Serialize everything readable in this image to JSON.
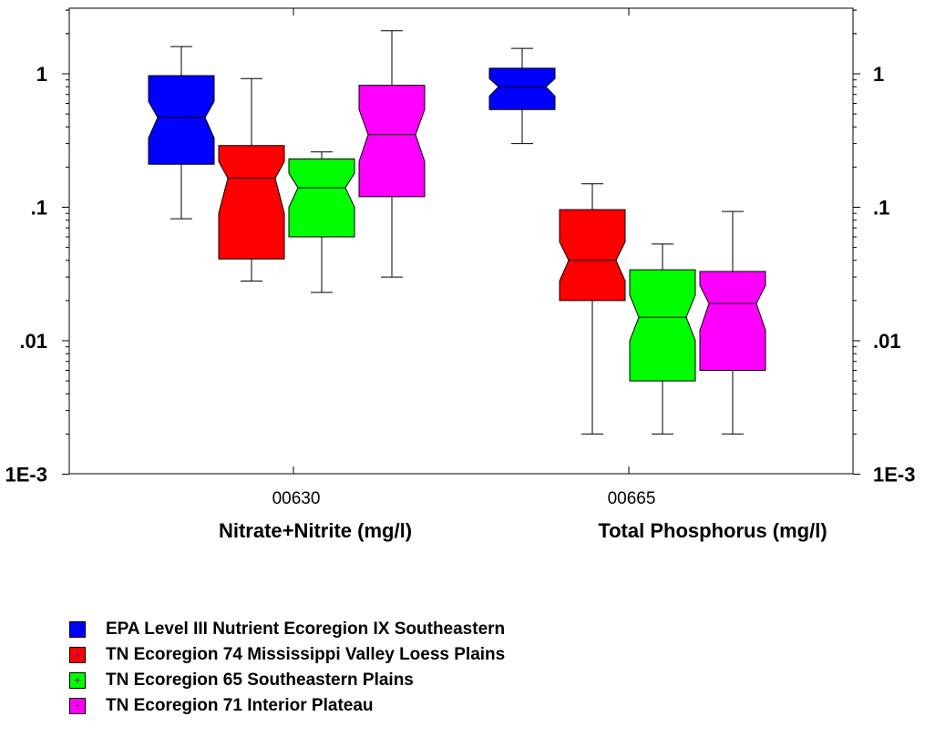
{
  "chart_data": {
    "type": "boxplot",
    "yscale": "log",
    "ylim": [
      0.001,
      3
    ],
    "y_ticks": [
      {
        "value": 1,
        "label": "1"
      },
      {
        "value": 0.1,
        "label": ".1"
      },
      {
        "value": 0.01,
        "label": ".01"
      },
      {
        "value": 0.001,
        "label": "1E-3"
      }
    ],
    "notched": true,
    "groups": [
      {
        "code": "00630",
        "parameter": "Nitrate+Nitrite (mg/l)"
      },
      {
        "code": "00665",
        "parameter": "Total Phosphorus (mg/l)"
      }
    ],
    "series": [
      {
        "name": "EPA Level III Nutrient Ecoregion IX Southeastern",
        "color": "#0000ff",
        "marker_color": "#0000ff",
        "boxes": [
          {
            "min": 0.082,
            "q1": 0.21,
            "median": 0.47,
            "q3": 0.97,
            "max": 1.6,
            "notch_low": 0.33,
            "notch_high": 0.62
          },
          {
            "min": 0.3,
            "q1": 0.54,
            "median": 0.8,
            "q3": 1.1,
            "max": 1.55,
            "notch_low": 0.68,
            "notch_high": 0.92
          }
        ]
      },
      {
        "name": "TN Ecoregion 74 Mississippi Valley Loess Plains",
        "color": "#ff0000",
        "marker_color": "#8b008b",
        "boxes": [
          {
            "min": 0.028,
            "q1": 0.041,
            "median": 0.165,
            "q3": 0.29,
            "max": 0.92,
            "notch_low": 0.09,
            "notch_high": 0.22
          },
          {
            "min": 0.002,
            "q1": 0.02,
            "median": 0.04,
            "q3": 0.096,
            "max": 0.15,
            "notch_low": 0.028,
            "notch_high": 0.055
          }
        ]
      },
      {
        "name": "TN Ecoregion 65 Southeastern Plains",
        "color": "#00ff00",
        "marker_color": "#8b008b",
        "boxes": [
          {
            "min": 0.023,
            "q1": 0.06,
            "median": 0.14,
            "q3": 0.23,
            "max": 0.26,
            "notch_low": 0.1,
            "notch_high": 0.18
          },
          {
            "min": 0.002,
            "q1": 0.005,
            "median": 0.015,
            "q3": 0.034,
            "max": 0.053,
            "notch_low": 0.01,
            "notch_high": 0.022
          }
        ]
      },
      {
        "name": "TN Ecoregion 71 Interior Plateau",
        "color": "#ff00ff",
        "marker_color": "#8b008b",
        "boxes": [
          {
            "min": 0.03,
            "q1": 0.12,
            "median": 0.35,
            "q3": 0.82,
            "max": 2.1,
            "notch_low": 0.22,
            "notch_high": 0.54
          },
          {
            "min": 0.002,
            "q1": 0.006,
            "median": 0.019,
            "q3": 0.033,
            "max": 0.093,
            "notch_low": 0.012,
            "notch_high": 0.026
          }
        ]
      }
    ]
  }
}
